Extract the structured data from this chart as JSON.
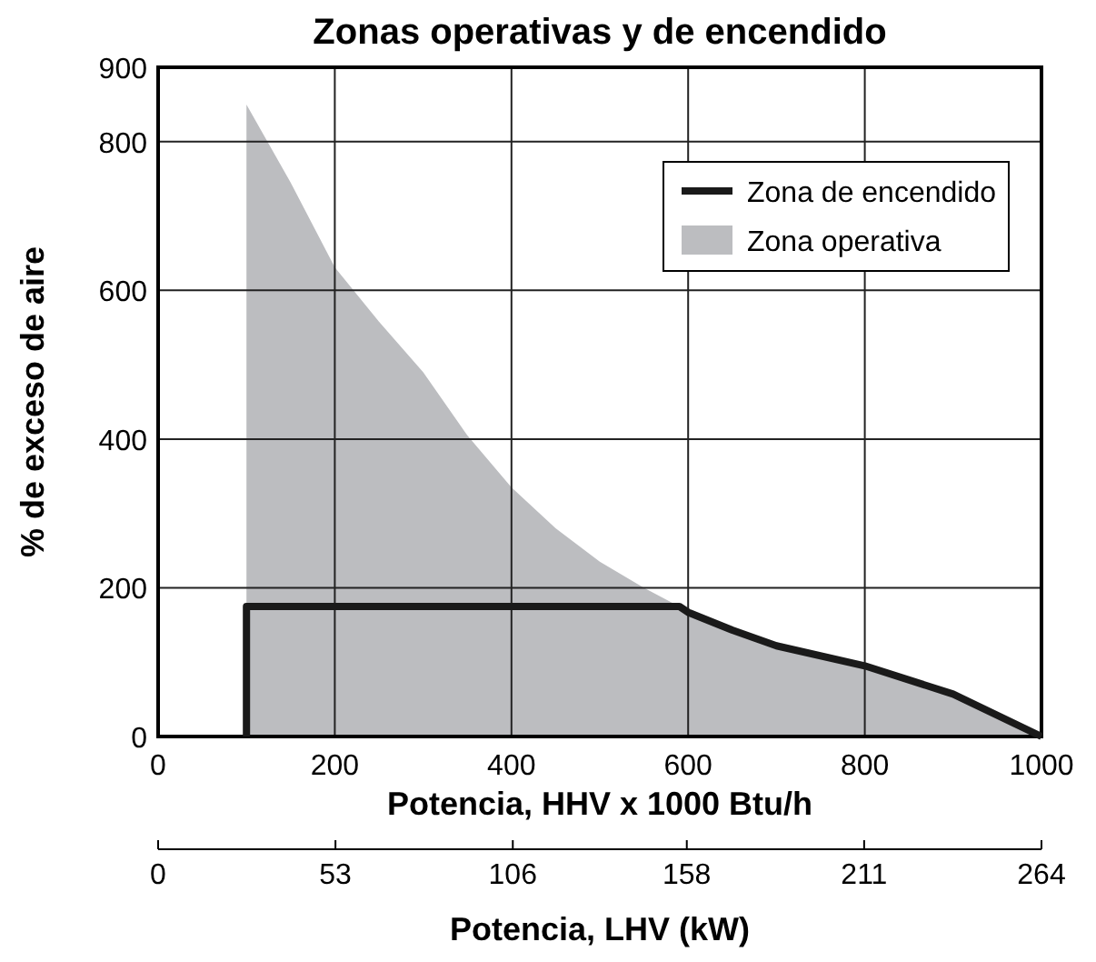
{
  "chart_data": {
    "type": "line",
    "title": "Zonas operativas y de encendido",
    "xlabel": "Potencia, HHV x 1000 Btu/h",
    "x2label": "Potencia, LHV (kW)",
    "ylabel": "% de exceso de aire",
    "xlim": [
      0,
      1000
    ],
    "xticks": [
      0,
      200,
      400,
      600,
      800,
      1000
    ],
    "ylim": [
      0,
      900
    ],
    "yticks": [
      0,
      200,
      400,
      600,
      800,
      900
    ],
    "x2lim": [
      0,
      264
    ],
    "x2ticks": [
      0,
      53,
      106,
      158,
      211,
      264
    ],
    "grid": true,
    "legend": "top right",
    "series": [
      {
        "name": "Zona de encendido",
        "color": "#1a1a1a",
        "x": [
          100,
          100,
          590,
          600,
          650,
          700,
          800,
          900,
          1000
        ],
        "values": [
          0,
          175,
          175,
          167,
          143,
          122,
          95,
          57,
          0
        ]
      },
      {
        "name": "Zona operativa",
        "type": "area",
        "color": "#bcbdc0",
        "x": [
          100,
          150,
          200,
          250,
          300,
          350,
          400,
          450,
          500,
          550,
          585,
          600,
          650,
          700,
          800,
          900,
          1000
        ],
        "values": [
          850,
          745,
          631,
          558,
          490,
          405,
          335,
          280,
          235,
          200,
          178,
          167,
          143,
          122,
          95,
          57,
          0
        ]
      }
    ]
  }
}
